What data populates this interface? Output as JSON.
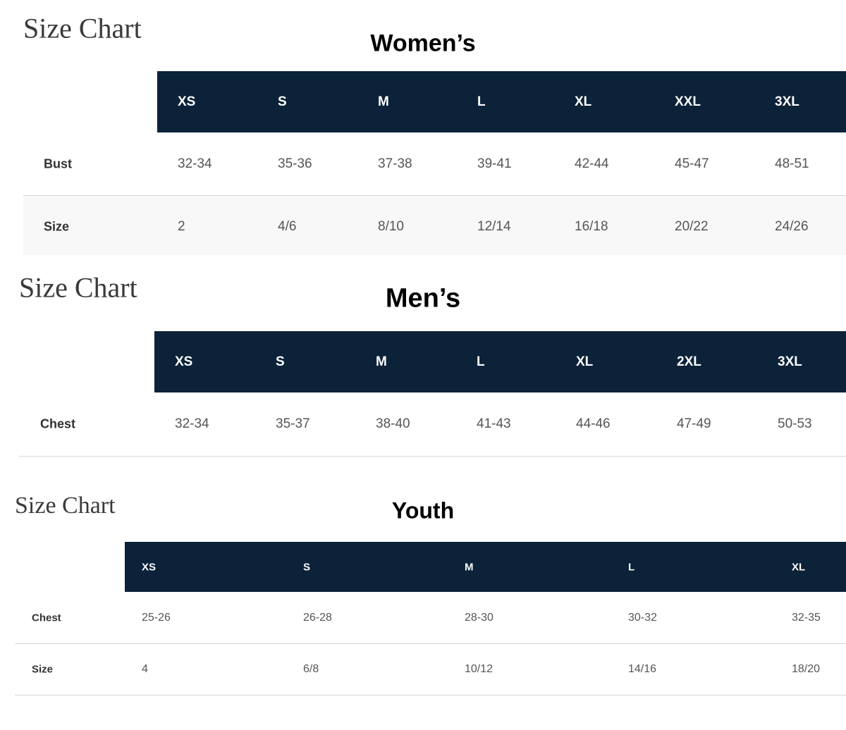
{
  "sections": [
    {
      "title": "Size Chart",
      "subtitle": "Women’s",
      "header": [
        "XS",
        "S",
        "M",
        "L",
        "XL",
        "XXL",
        "3XL"
      ],
      "rows": [
        {
          "label": "Bust",
          "cells": [
            "32-34",
            "35-36",
            "37-38",
            "39-41",
            "42-44",
            "45-47",
            "48-51"
          ]
        },
        {
          "label": "Size",
          "cells": [
            "2",
            "4/6",
            "8/10",
            "12/14",
            "16/18",
            "20/22",
            "24/26"
          ]
        }
      ]
    },
    {
      "title": "Size Chart",
      "subtitle": "Men’s",
      "header": [
        "XS",
        "S",
        "M",
        "L",
        "XL",
        "2XL",
        "3XL"
      ],
      "rows": [
        {
          "label": "Chest",
          "cells": [
            "32-34",
            "35-37",
            "38-40",
            "41-43",
            "44-46",
            "47-49",
            "50-53"
          ]
        }
      ]
    },
    {
      "title": "Size Chart",
      "subtitle": "Youth",
      "header": [
        "XS",
        "S",
        "M",
        "L",
        "XL"
      ],
      "rows": [
        {
          "label": "Chest",
          "cells": [
            "25-26",
            "26-28",
            "28-30",
            "30-32",
            "32-35"
          ]
        },
        {
          "label": "Size",
          "cells": [
            "4",
            "6/8",
            "10/12",
            "14/16",
            "18/20"
          ]
        }
      ]
    }
  ]
}
